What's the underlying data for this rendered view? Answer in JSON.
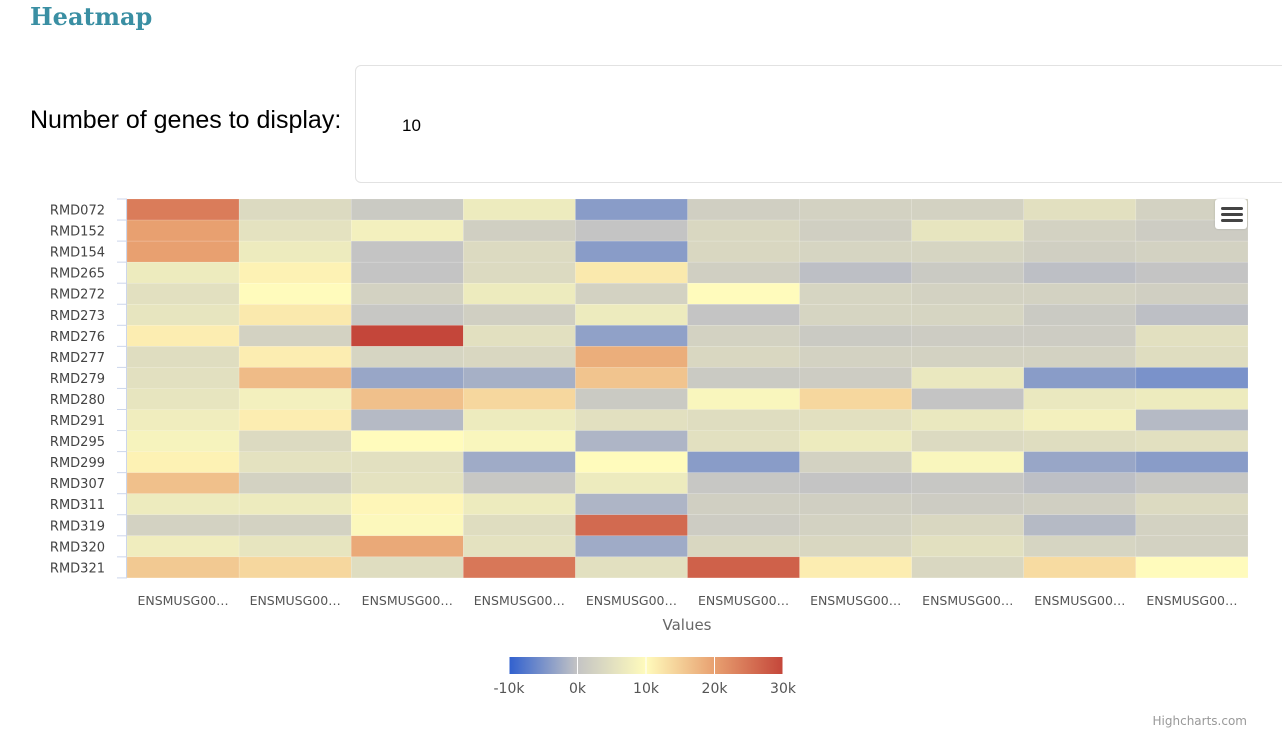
{
  "page": {
    "title": "Heatmap"
  },
  "controls": {
    "genes_label": "Number of genes to display:",
    "genes_value": "10"
  },
  "credits": "Highcharts.com",
  "chart_data": {
    "type": "heatmap",
    "xlabel": "Values",
    "categories_x": [
      "ENSMUSG00…",
      "ENSMUSG00…",
      "ENSMUSG00…",
      "ENSMUSG00…",
      "ENSMUSG00…",
      "ENSMUSG00…",
      "ENSMUSG00…",
      "ENSMUSG00…",
      "ENSMUSG00…",
      "ENSMUSG00…"
    ],
    "categories_y": [
      "RMD072",
      "RMD152",
      "RMD154",
      "RMD265",
      "RMD272",
      "RMD273",
      "RMD276",
      "RMD277",
      "RMD279",
      "RMD280",
      "RMD291",
      "RMD295",
      "RMD299",
      "RMD307",
      "RMD311",
      "RMD319",
      "RMD320",
      "RMD321"
    ],
    "values": [
      [
        24000,
        4000,
        1000,
        7000,
        -4000,
        2000,
        2500,
        2500,
        5000,
        2500
      ],
      [
        20000,
        5500,
        8000,
        2000,
        0,
        3500,
        2000,
        6000,
        2500,
        1500
      ],
      [
        20000,
        7000,
        0,
        4000,
        -4000,
        3500,
        3000,
        3000,
        2000,
        2500
      ],
      [
        7000,
        11000,
        0,
        4000,
        12000,
        2000,
        -500,
        1000,
        -500,
        0
      ],
      [
        5000,
        10000,
        2500,
        7000,
        2500,
        10000,
        3000,
        2500,
        2500,
        2000
      ],
      [
        6000,
        12000,
        500,
        2000,
        7000,
        0,
        3000,
        3000,
        1000,
        -500
      ],
      [
        11500,
        2500,
        31000,
        5000,
        -3500,
        2500,
        1000,
        1500,
        1500,
        5000
      ],
      [
        4500,
        11500,
        3000,
        3500,
        18500,
        3500,
        2500,
        2500,
        2500,
        4500
      ],
      [
        5000,
        17000,
        -3000,
        -2000,
        16000,
        1000,
        1500,
        6500,
        -4000,
        -5000
      ],
      [
        6000,
        8000,
        16500,
        14000,
        1000,
        9000,
        14000,
        0,
        6500,
        7000
      ],
      [
        7500,
        11500,
        -1000,
        7000,
        5000,
        4500,
        5000,
        6500,
        8000,
        -1000
      ],
      [
        8500,
        4000,
        10000,
        9000,
        -1500,
        5000,
        7000,
        4000,
        4500,
        5000
      ],
      [
        11000,
        5500,
        5000,
        -2500,
        10000,
        -4000,
        2500,
        9000,
        -3000,
        -4000
      ],
      [
        16500,
        2500,
        5500,
        500,
        7000,
        500,
        0,
        500,
        -500,
        500
      ],
      [
        7000,
        7000,
        10500,
        7000,
        -1500,
        2000,
        2000,
        1500,
        2000,
        4000
      ],
      [
        2500,
        2500,
        9500,
        4500,
        26000,
        1500,
        2500,
        3500,
        -1000,
        2500
      ],
      [
        7500,
        6000,
        19000,
        5500,
        -2500,
        3500,
        3500,
        5000,
        3000,
        2500
      ],
      [
        15500,
        14000,
        4500,
        24500,
        5000,
        27000,
        11500,
        3500,
        13500,
        10000
      ]
    ],
    "colorAxis": {
      "min": -10000,
      "max": 30000,
      "stops": [
        [
          0,
          "#3060cf"
        ],
        [
          0.25,
          "#c4c4c4"
        ],
        [
          0.5,
          "#fffbbc"
        ],
        [
          0.75,
          "#e8a070"
        ],
        [
          1,
          "#c4463a"
        ]
      ],
      "tick_labels": [
        "-10k",
        "0k",
        "10k",
        "20k",
        "30k"
      ],
      "tick_values": [
        -10000,
        0,
        10000,
        20000,
        30000
      ]
    }
  }
}
